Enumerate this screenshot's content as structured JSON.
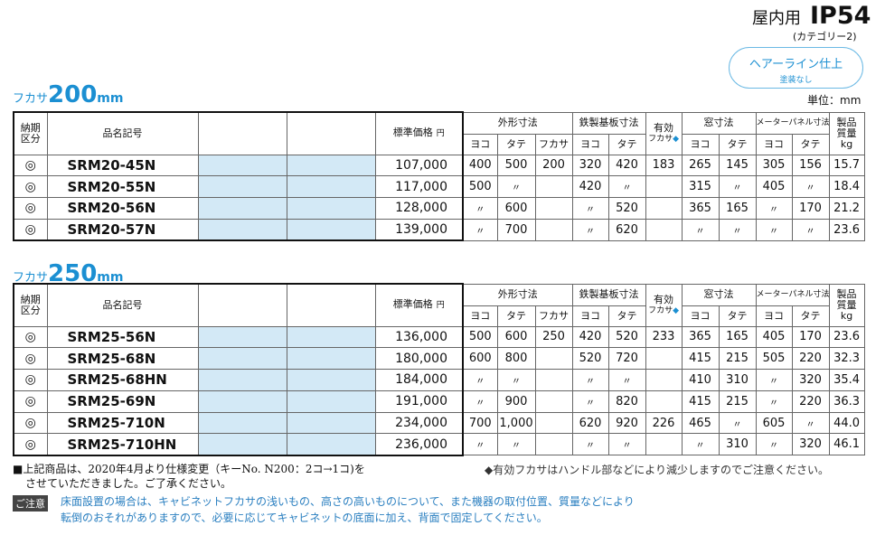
{
  "header": {
    "indoor": "屋内用",
    "rating": "IP54",
    "category": "(カテゴリー2)",
    "finish": "ヘアーライン仕上",
    "coating": "塗装なし",
    "unit": "単位：mm"
  },
  "columns": {
    "delivery": "納期区分",
    "model": "品名記号",
    "price": "標準価格",
    "yen": "円",
    "outer": "外形寸法",
    "plate": "鉄製基板寸法",
    "depth": "有効",
    "depth2": "フカサ",
    "diamond": "◆",
    "window": "窓寸法",
    "meter": "メーターパネル寸法",
    "weight": "製品質量",
    "kg": "kg",
    "sub": [
      "ヨコ",
      "タテ",
      "フカサ",
      "ヨコ",
      "タテ",
      "ヨコ",
      "タテ",
      "ヨコ",
      "タテ"
    ]
  },
  "sections": [
    {
      "label": "フカサ",
      "depth": "200",
      "unit": "mm",
      "rows": [
        {
          "mark": "◎",
          "model": "SRM20-45N",
          "price": "107,000",
          "specs": [
            "400",
            "500",
            "200",
            "320",
            "420",
            "183",
            "265",
            "145",
            "305",
            "156",
            "15.7"
          ]
        },
        {
          "mark": "◎",
          "model": "SRM20-55N",
          "price": "117,000",
          "specs": [
            "500",
            "〃",
            null,
            "420",
            "〃",
            null,
            "315",
            "〃",
            "405",
            "〃",
            "18.4"
          ]
        },
        {
          "mark": "◎",
          "model": "SRM20-56N",
          "price": "128,000",
          "specs": [
            "〃",
            "600",
            null,
            "〃",
            "520",
            null,
            "365",
            "165",
            "〃",
            "170",
            "21.2"
          ]
        },
        {
          "mark": "◎",
          "model": "SRM20-57N",
          "price": "139,000",
          "specs": [
            "〃",
            "700",
            null,
            "〃",
            "620",
            null,
            "〃",
            "〃",
            "〃",
            "〃",
            "23.6"
          ]
        }
      ]
    },
    {
      "label": "フカサ",
      "depth": "250",
      "unit": "mm",
      "rows": [
        {
          "mark": "◎",
          "model": "SRM25-56N",
          "price": "136,000",
          "specs": [
            "500",
            "600",
            "250",
            "420",
            "520",
            "233",
            "365",
            "165",
            "405",
            "170",
            "23.6"
          ]
        },
        {
          "mark": "◎",
          "model": "SRM25-68N",
          "price": "180,000",
          "specs": [
            "600",
            "800",
            null,
            "520",
            "720",
            null,
            "415",
            "215",
            "505",
            "220",
            "32.3"
          ]
        },
        {
          "mark": "◎",
          "model": "SRM25-68HN",
          "price": "184,000",
          "specs": [
            "〃",
            "〃",
            null,
            "〃",
            "〃",
            null,
            "410",
            "310",
            "〃",
            "320",
            "35.4"
          ]
        },
        {
          "mark": "◎",
          "model": "SRM25-69N",
          "price": "191,000",
          "specs": [
            "〃",
            "900",
            null,
            "〃",
            "820",
            null,
            "415",
            "215",
            "〃",
            "220",
            "36.3"
          ]
        },
        {
          "mark": "◎",
          "model": "SRM25-710N",
          "price": "234,000",
          "specs": [
            "700",
            "1,000",
            null,
            "620",
            "920",
            "226",
            "465",
            "〃",
            "605",
            "〃",
            "44.0"
          ]
        },
        {
          "mark": "◎",
          "model": "SRM25-710HN",
          "price": "236,000",
          "specs": [
            "〃",
            "〃",
            null,
            "〃",
            "〃",
            null,
            "〃",
            "310",
            "〃",
            "320",
            "46.1"
          ]
        }
      ]
    }
  ],
  "notes": {
    "change1": "■上記商品は、2020年4月より仕様変更（キーNo. N200：2コ→1コ)を",
    "change2": "させていただきました。ご了承ください。",
    "depth_note": "◆有効フカサはハンドル部などにより減少しますのでご注意ください。",
    "caution_label": "ご注意",
    "caution1": "床面設置の場合は、キャビネットフカサの浅いもの、高さの高いものについて、また機器の取付位置、質量などにより",
    "caution2": "転倒のおそれがありますので、必要に応じてキャビネットの底面に加え、背面で固定してください。"
  }
}
